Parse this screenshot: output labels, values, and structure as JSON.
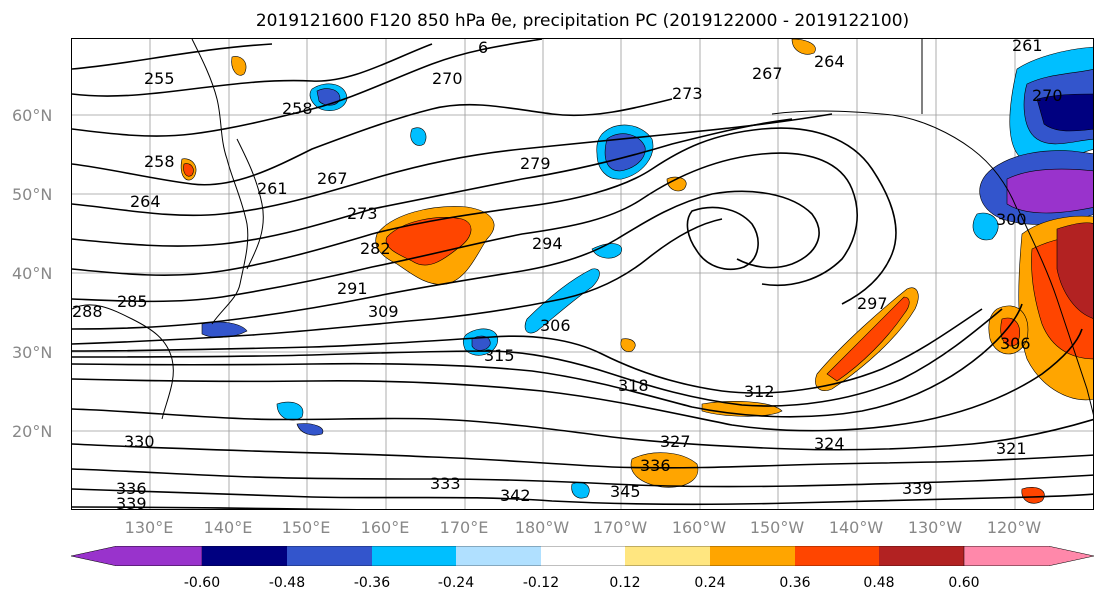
{
  "title": "2019121600 F120 850 hPa θe, precipitation PC (2019122000 - 2019122100)",
  "latitude_labels": [
    "60°N",
    "50°N",
    "40°N",
    "30°N",
    "20°N"
  ],
  "longitude_labels": [
    "130°E",
    "140°E",
    "150°E",
    "160°E",
    "170°E",
    "180°W",
    "170°W",
    "160°W",
    "150°W",
    "140°W",
    "130°W",
    "120°W"
  ],
  "contour_labels": [
    "6",
    "270",
    "264",
    "261",
    "255",
    "258",
    "258",
    "264",
    "261",
    "267",
    "273",
    "279",
    "282",
    "294",
    "291",
    "285",
    "288",
    "309",
    "306",
    "315",
    "318",
    "312",
    "297",
    "306",
    "300",
    "330",
    "327",
    "336",
    "336",
    "333",
    "342",
    "345",
    "339",
    "324",
    "321",
    "339",
    "270",
    "267",
    "273"
  ],
  "colorbar": {
    "tick_labels": [
      "-0.60",
      "-0.48",
      "-0.36",
      "-0.24",
      "-0.12",
      "0.12",
      "0.24",
      "0.36",
      "0.48",
      "0.60"
    ],
    "colors": [
      "#9933cc",
      "#000080",
      "#3355cc",
      "#00bfff",
      "#b0e0ff",
      "#ffffff",
      "#ffe680",
      "#ffa500",
      "#ff4500",
      "#b22222",
      "#ff88aa"
    ]
  }
}
